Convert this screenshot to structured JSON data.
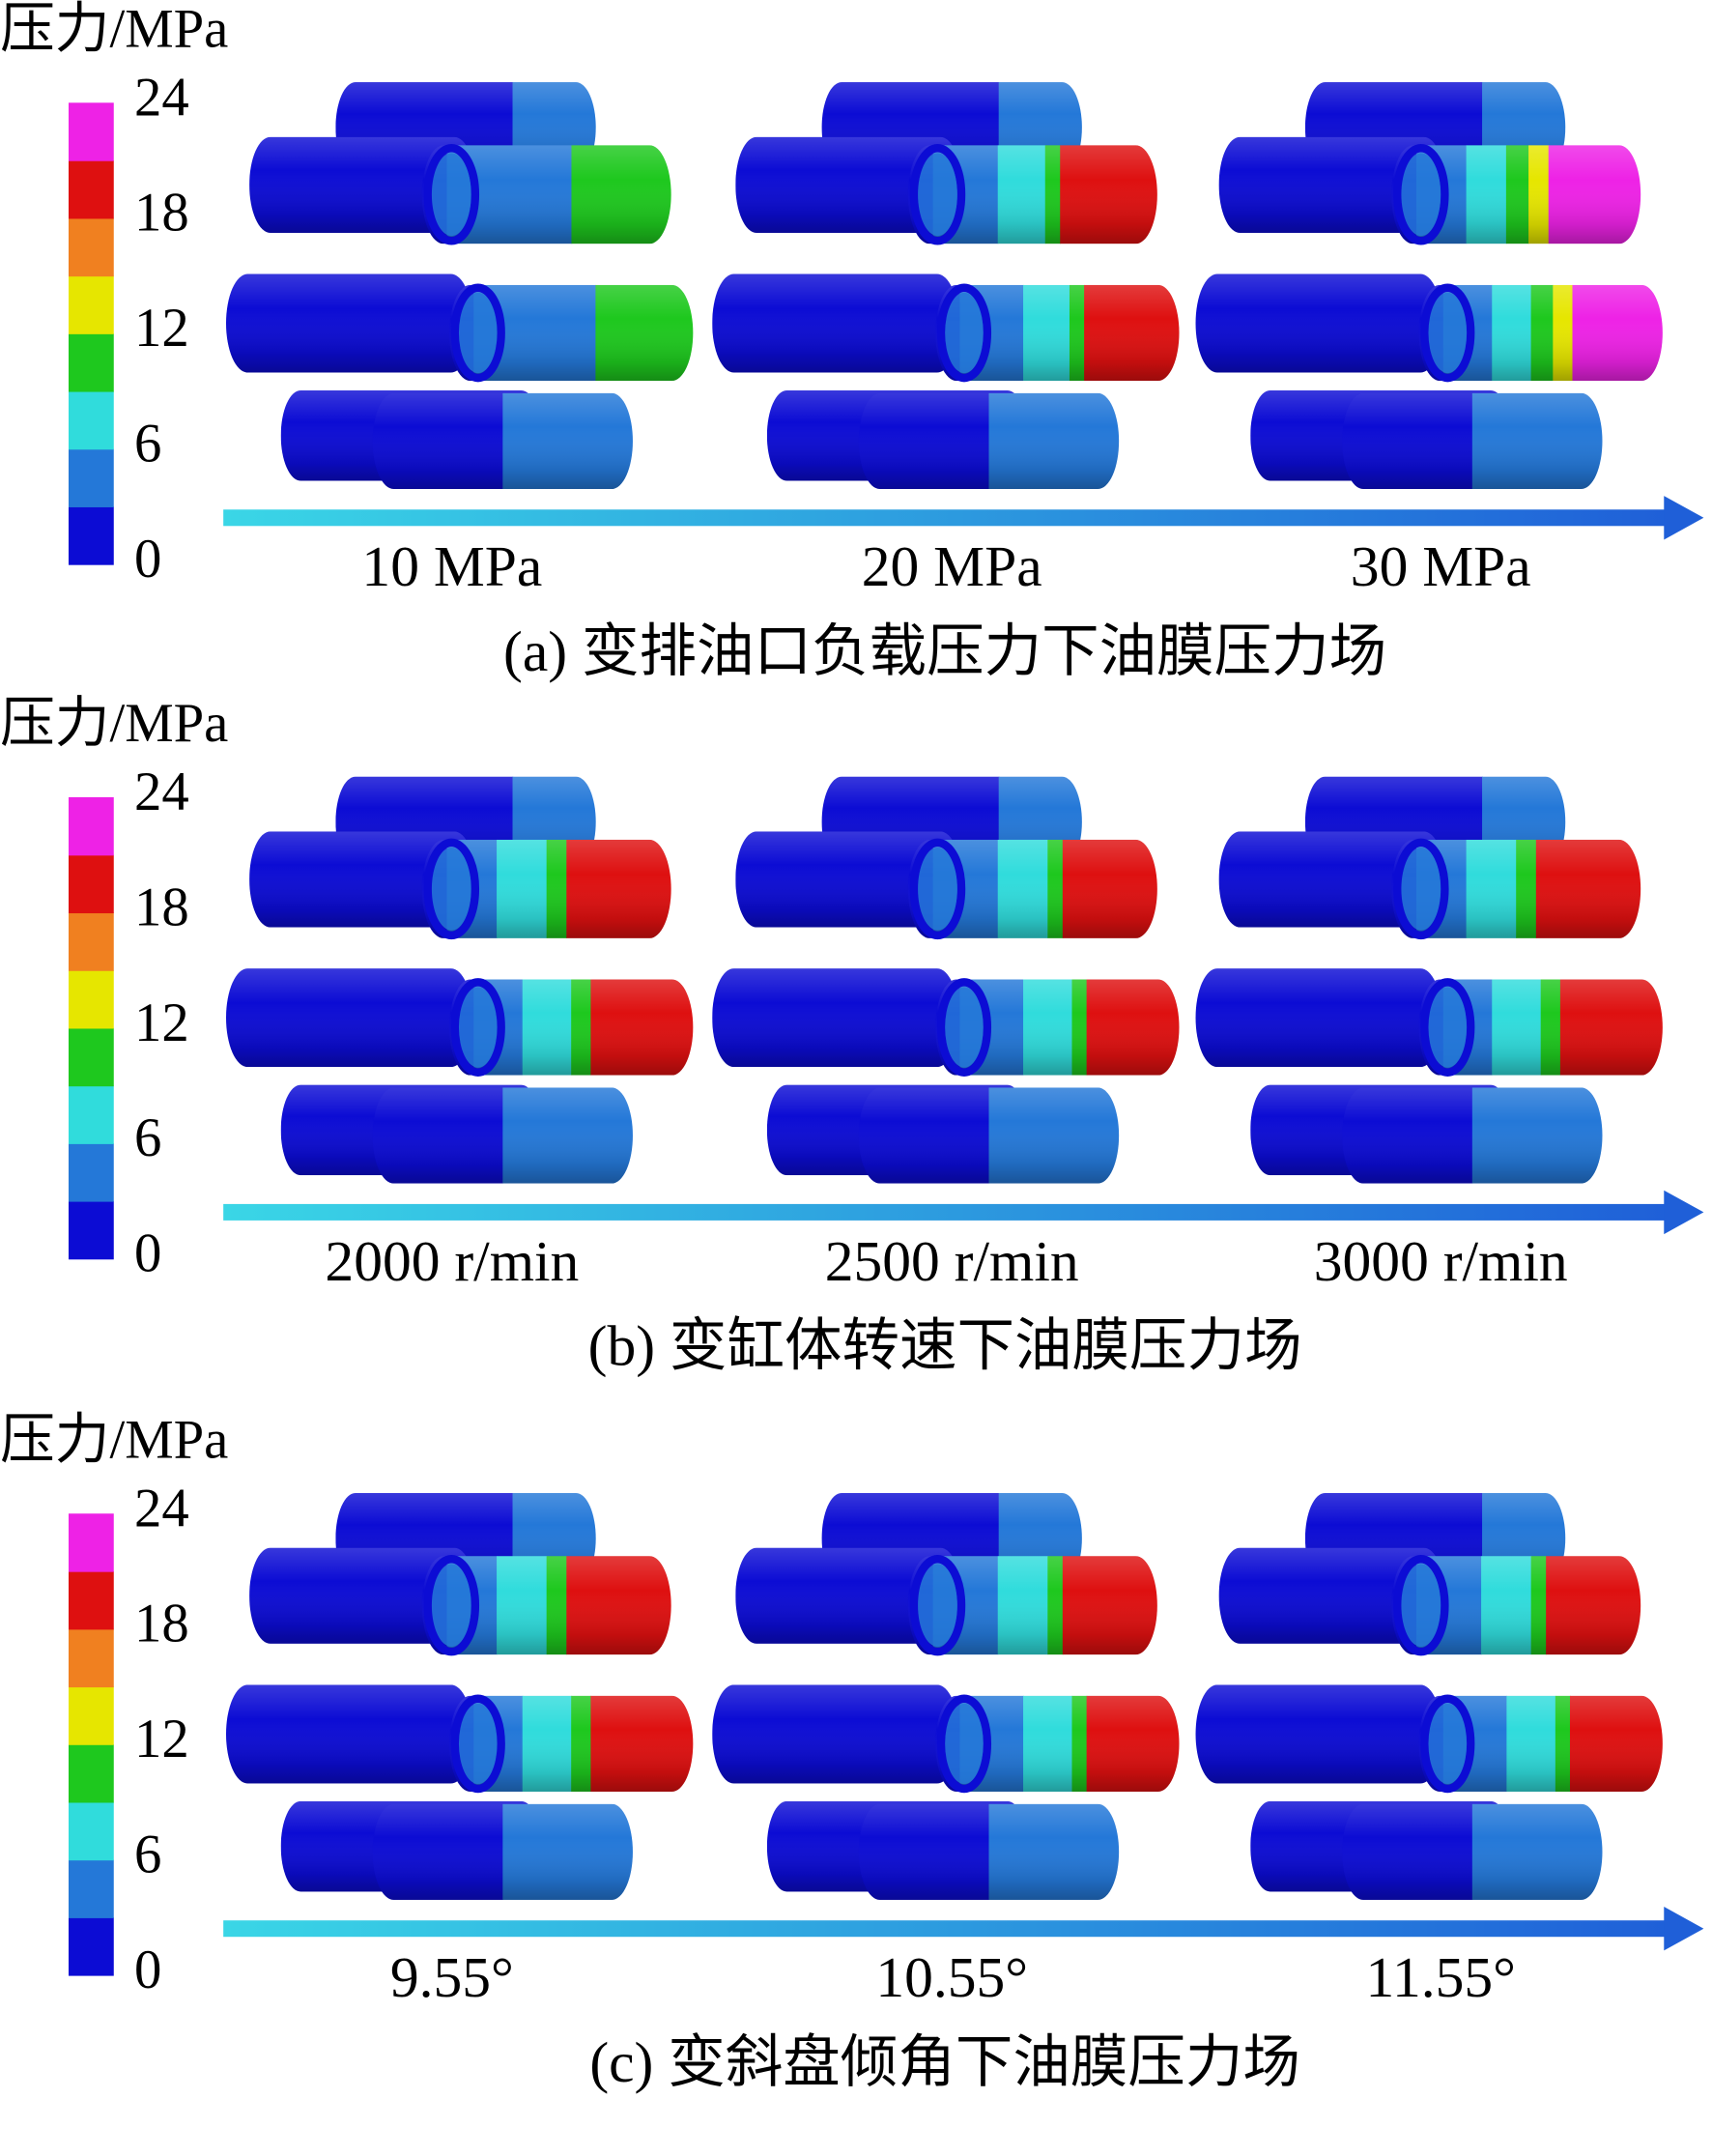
{
  "panels": [
    {
      "legend_title": "压力/MPa",
      "colorbar": {
        "range": [
          0,
          24
        ],
        "ticks": [
          0,
          6,
          12,
          18,
          24
        ],
        "colors": [
          "#0c0cd4",
          "#2478d8",
          "#30dcdc",
          "#1ec81e",
          "#e6e600",
          "#f08020",
          "#de1010",
          "#ee22e6"
        ]
      },
      "conditions": [
        "10 MPa",
        "20 MPa",
        "30 MPa"
      ],
      "caption": "(a) 变排油口负载压力下油膜压力场"
    },
    {
      "legend_title": "压力/MPa",
      "colorbar": {
        "range": [
          0,
          24
        ],
        "ticks": [
          0,
          6,
          12,
          18,
          24
        ],
        "colors": [
          "#0c0cd4",
          "#2478d8",
          "#30dcdc",
          "#1ec81e",
          "#e6e600",
          "#f08020",
          "#de1010",
          "#ee22e6"
        ]
      },
      "conditions": [
        "2000 r/min",
        "2500 r/min",
        "3000 r/min"
      ],
      "caption": "(b) 变缸体转速下油膜压力场"
    },
    {
      "legend_title": "压力/MPa",
      "colorbar": {
        "range": [
          0,
          24
        ],
        "ticks": [
          0,
          6,
          12,
          18,
          24
        ],
        "colors": [
          "#0c0cd4",
          "#2478d8",
          "#30dcdc",
          "#1ec81e",
          "#e6e600",
          "#f08020",
          "#de1010",
          "#ee22e6"
        ]
      },
      "conditions": [
        "9.55°",
        "10.55°",
        "11.55°"
      ],
      "caption": "(c) 变斜盘倾角下油膜压力场"
    }
  ]
}
